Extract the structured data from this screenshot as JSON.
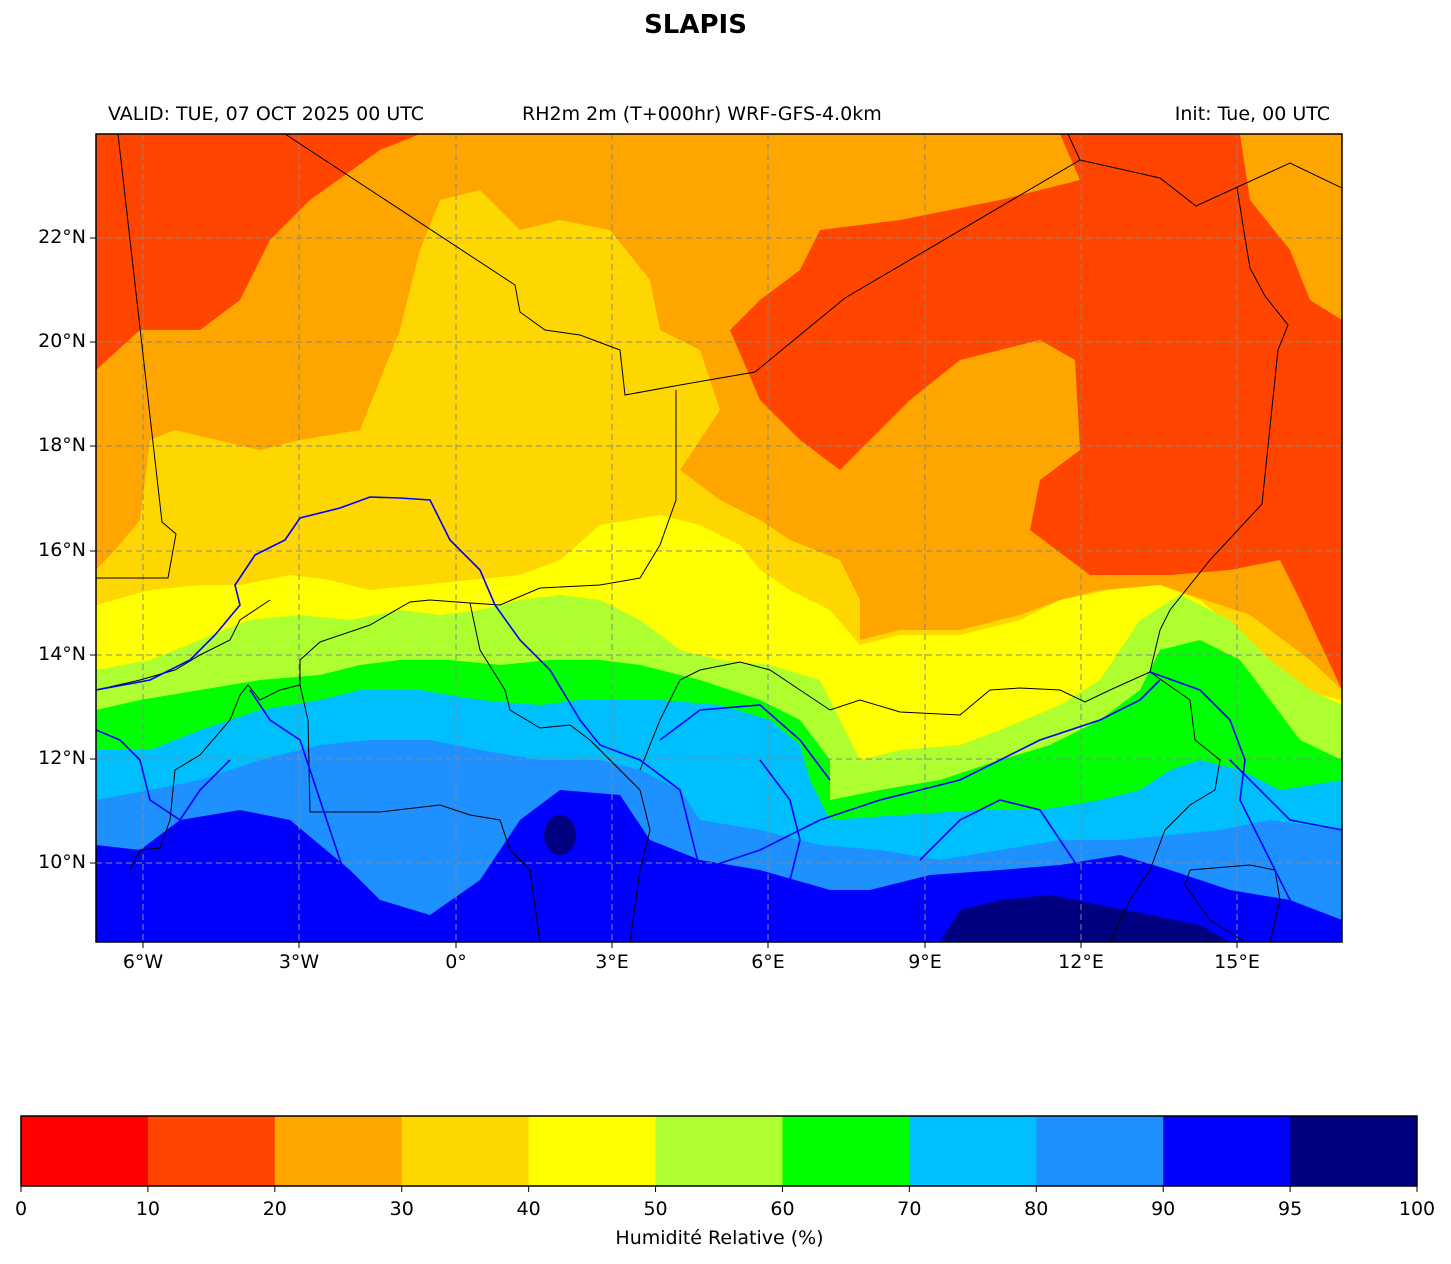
{
  "title": "SLAPIS",
  "subtitle": {
    "valid": "VALID: TUE, 07 OCT 2025 00 UTC",
    "product": "RH2m 2m (T+000hr) WRF-GFS-4.0km",
    "init": "Init: Tue, 00 UTC"
  },
  "map": {
    "lon_range": [
      -7,
      17
    ],
    "lat_range": [
      8.5,
      24
    ],
    "lat_ticks": [
      {
        "value": 10,
        "label": "10°N"
      },
      {
        "value": 12,
        "label": "12°N"
      },
      {
        "value": 14,
        "label": "14°N"
      },
      {
        "value": 16,
        "label": "16°N"
      },
      {
        "value": 18,
        "label": "18°N"
      },
      {
        "value": 20,
        "label": "20°N"
      },
      {
        "value": 22,
        "label": "22°N"
      }
    ],
    "lon_ticks": [
      {
        "value": -6,
        "label": "6°W"
      },
      {
        "value": -3,
        "label": "3°W"
      },
      {
        "value": 0,
        "label": "0°"
      },
      {
        "value": 3,
        "label": "3°E"
      },
      {
        "value": 6,
        "label": "6°E"
      },
      {
        "value": 9,
        "label": "9°E"
      },
      {
        "value": 12,
        "label": "12°E"
      },
      {
        "value": 15,
        "label": "15°E"
      }
    ],
    "gridlines": true,
    "boundary_color": "#000000",
    "river_color": "#0000ff"
  },
  "colorbar": {
    "label": "Humidité Relative (%)",
    "boundaries": [
      0,
      10,
      20,
      30,
      40,
      50,
      60,
      70,
      80,
      90,
      95,
      100
    ],
    "tick_labels": [
      "0",
      "10",
      "20",
      "30",
      "40",
      "50",
      "60",
      "70",
      "80",
      "90",
      "95",
      "100"
    ],
    "colors": [
      "#ff0000",
      "#ff4500",
      "#ffa500",
      "#ffd700",
      "#ffff00",
      "#adff2f",
      "#00ff00",
      "#00bfff",
      "#1e90ff",
      "#0000ff",
      "#000080"
    ]
  }
}
